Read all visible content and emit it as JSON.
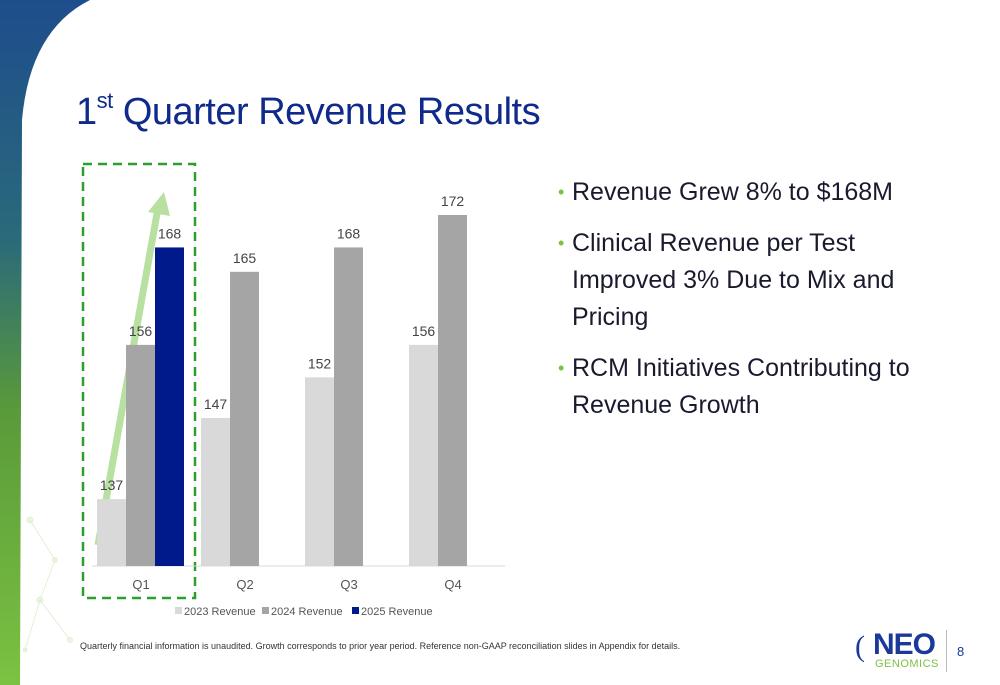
{
  "slide": {
    "title_main": "1",
    "title_sup": "st",
    "title_rest": " Quarter Revenue Results",
    "bullets": [
      "Revenue Grew 8% to $168M",
      "Clinical Revenue per Test Improved 3% Due to Mix and Pricing",
      "RCM Initiatives Contributing to Revenue Growth"
    ],
    "footnote": "Quarterly financial information is unaudited. Growth corresponds to prior year period. Reference non-GAAP reconciliation slides in Appendix for details.",
    "logo": {
      "neo": "NEO",
      "genomics": "GENOMICS"
    },
    "page_number": "8"
  },
  "colors": {
    "title": "#0f2a8a",
    "series_2023": "#d9d9d9",
    "series_2024": "#a5a5a5",
    "series_2025": "#001a8c",
    "highlight_box": "#2aa02a",
    "arrow": "#b8e0a0",
    "bullet": "#7cc242"
  },
  "chart_data": {
    "type": "bar",
    "categories": [
      "Q1",
      "Q2",
      "Q3",
      "Q4"
    ],
    "series": [
      {
        "name": "2023 Revenue",
        "values": [
          137,
          147,
          152,
          156
        ]
      },
      {
        "name": "2024 Revenue",
        "values": [
          156,
          165,
          168,
          172
        ]
      },
      {
        "name": "2025 Revenue",
        "values": [
          168,
          null,
          null,
          null
        ]
      }
    ],
    "ylim": [
      130,
      180
    ],
    "legend": "bottom",
    "highlight": "Q1",
    "data_labels": true,
    "grid": false
  }
}
